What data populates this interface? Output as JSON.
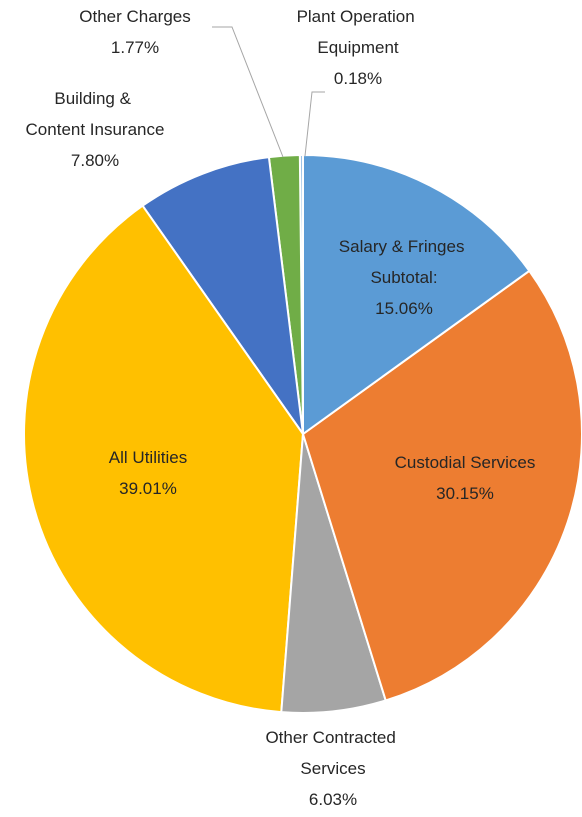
{
  "chart_data": {
    "type": "pie",
    "categories": [
      "Salary & Fringes Subtotal:",
      "Custodial Services",
      "Other Contracted Services",
      "All Utilities",
      "Building & Content Insurance",
      "Other Charges",
      "Plant Operation Equipment"
    ],
    "values": [
      15.06,
      30.15,
      6.03,
      39.01,
      7.8,
      1.77,
      0.18
    ],
    "value_labels": [
      "15.06%",
      "30.15%",
      "6.03%",
      "39.01%",
      "7.80%",
      "1.77%",
      "0.18%"
    ],
    "colors": [
      "#5b9bd5",
      "#ed7d31",
      "#a5a5a5",
      "#ffc000",
      "#4472c4",
      "#70ad47",
      "#9dc3e6"
    ]
  }
}
